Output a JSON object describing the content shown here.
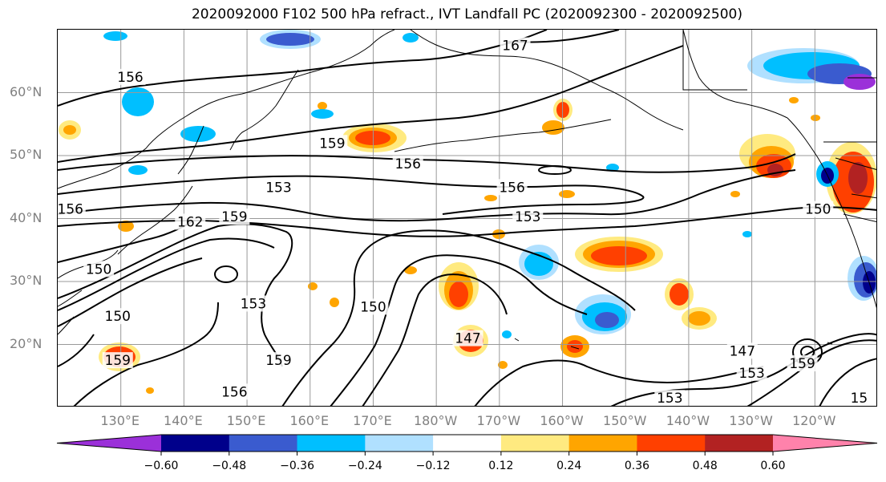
{
  "title": "2020092000 F102 500 hPa refract., IVT Landfall PC (2020092300 - 2020092500)",
  "map": {
    "lon_range": [
      120,
      250
    ],
    "lat_range": [
      10,
      70
    ],
    "lat_labels": [
      {
        "lat": 60,
        "text": "60°N"
      },
      {
        "lat": 50,
        "text": "50°N"
      },
      {
        "lat": 40,
        "text": "40°N"
      },
      {
        "lat": 30,
        "text": "30°N"
      },
      {
        "lat": 20,
        "text": "20°N"
      }
    ],
    "lon_labels": [
      {
        "lon": 130,
        "text": "130°E"
      },
      {
        "lon": 140,
        "text": "140°E"
      },
      {
        "lon": 150,
        "text": "150°E"
      },
      {
        "lon": 160,
        "text": "160°E"
      },
      {
        "lon": 170,
        "text": "170°E"
      },
      {
        "lon": 180,
        "text": "180°W"
      },
      {
        "lon": 190,
        "text": "170°W"
      },
      {
        "lon": 200,
        "text": "160°W"
      },
      {
        "lon": 210,
        "text": "150°W"
      },
      {
        "lon": 220,
        "text": "140°W"
      },
      {
        "lon": 230,
        "text": "130°W"
      },
      {
        "lon": 240,
        "text": "120°W"
      }
    ],
    "contour_labels": [
      {
        "text": "156",
        "lon": 131.5,
        "lat": 62.5
      },
      {
        "text": "167",
        "lon": 192.5,
        "lat": 67.5
      },
      {
        "text": "159",
        "lon": 163.5,
        "lat": 52.0
      },
      {
        "text": "156",
        "lon": 175.5,
        "lat": 48.7
      },
      {
        "text": "153",
        "lon": 155.0,
        "lat": 45.0
      },
      {
        "text": "156",
        "lon": 192.0,
        "lat": 45.0
      },
      {
        "text": "159",
        "lon": 148.0,
        "lat": 40.3
      },
      {
        "text": "153",
        "lon": 194.5,
        "lat": 40.3
      },
      {
        "text": "162",
        "lon": 141.0,
        "lat": 39.5
      },
      {
        "text": "156",
        "lon": 122.0,
        "lat": 41.5
      },
      {
        "text": "150",
        "lon": 240.5,
        "lat": 41.5
      },
      {
        "text": "150",
        "lon": 126.5,
        "lat": 32.0
      },
      {
        "text": "153",
        "lon": 151.0,
        "lat": 26.5
      },
      {
        "text": "150",
        "lon": 170.0,
        "lat": 26.0
      },
      {
        "text": "150",
        "lon": 129.5,
        "lat": 24.5
      },
      {
        "text": "147",
        "lon": 185.0,
        "lat": 21.0
      },
      {
        "text": "159",
        "lon": 129.5,
        "lat": 17.5
      },
      {
        "text": "159",
        "lon": 155.0,
        "lat": 17.5
      },
      {
        "text": "147",
        "lon": 228.5,
        "lat": 19.0
      },
      {
        "text": "153",
        "lon": 230.0,
        "lat": 15.5
      },
      {
        "text": "159",
        "lon": 238.0,
        "lat": 17.0
      },
      {
        "text": "156",
        "lon": 148.0,
        "lat": 12.5
      },
      {
        "text": "153",
        "lon": 217.0,
        "lat": 11.5
      },
      {
        "text": "15",
        "lon": 247.0,
        "lat": 11.5
      }
    ]
  },
  "colorbar": {
    "colors": [
      "#9b30d9",
      "#00008b",
      "#3a5bcf",
      "#00bfff",
      "#b0e0ff",
      "#ffffff",
      "#ffea80",
      "#ffa500",
      "#ff4000",
      "#b22222",
      "#ff82ab"
    ],
    "ticks": [
      {
        "value": -0.6,
        "text": "−0.60"
      },
      {
        "value": -0.48,
        "text": "−0.48"
      },
      {
        "value": -0.36,
        "text": "−0.36"
      },
      {
        "value": -0.24,
        "text": "−0.24"
      },
      {
        "value": -0.12,
        "text": "−0.12"
      },
      {
        "value": 0.12,
        "text": "0.12"
      },
      {
        "value": 0.24,
        "text": "0.24"
      },
      {
        "value": 0.36,
        "text": "0.36"
      },
      {
        "value": 0.48,
        "text": "0.48"
      },
      {
        "value": 0.6,
        "text": "0.60"
      }
    ]
  }
}
